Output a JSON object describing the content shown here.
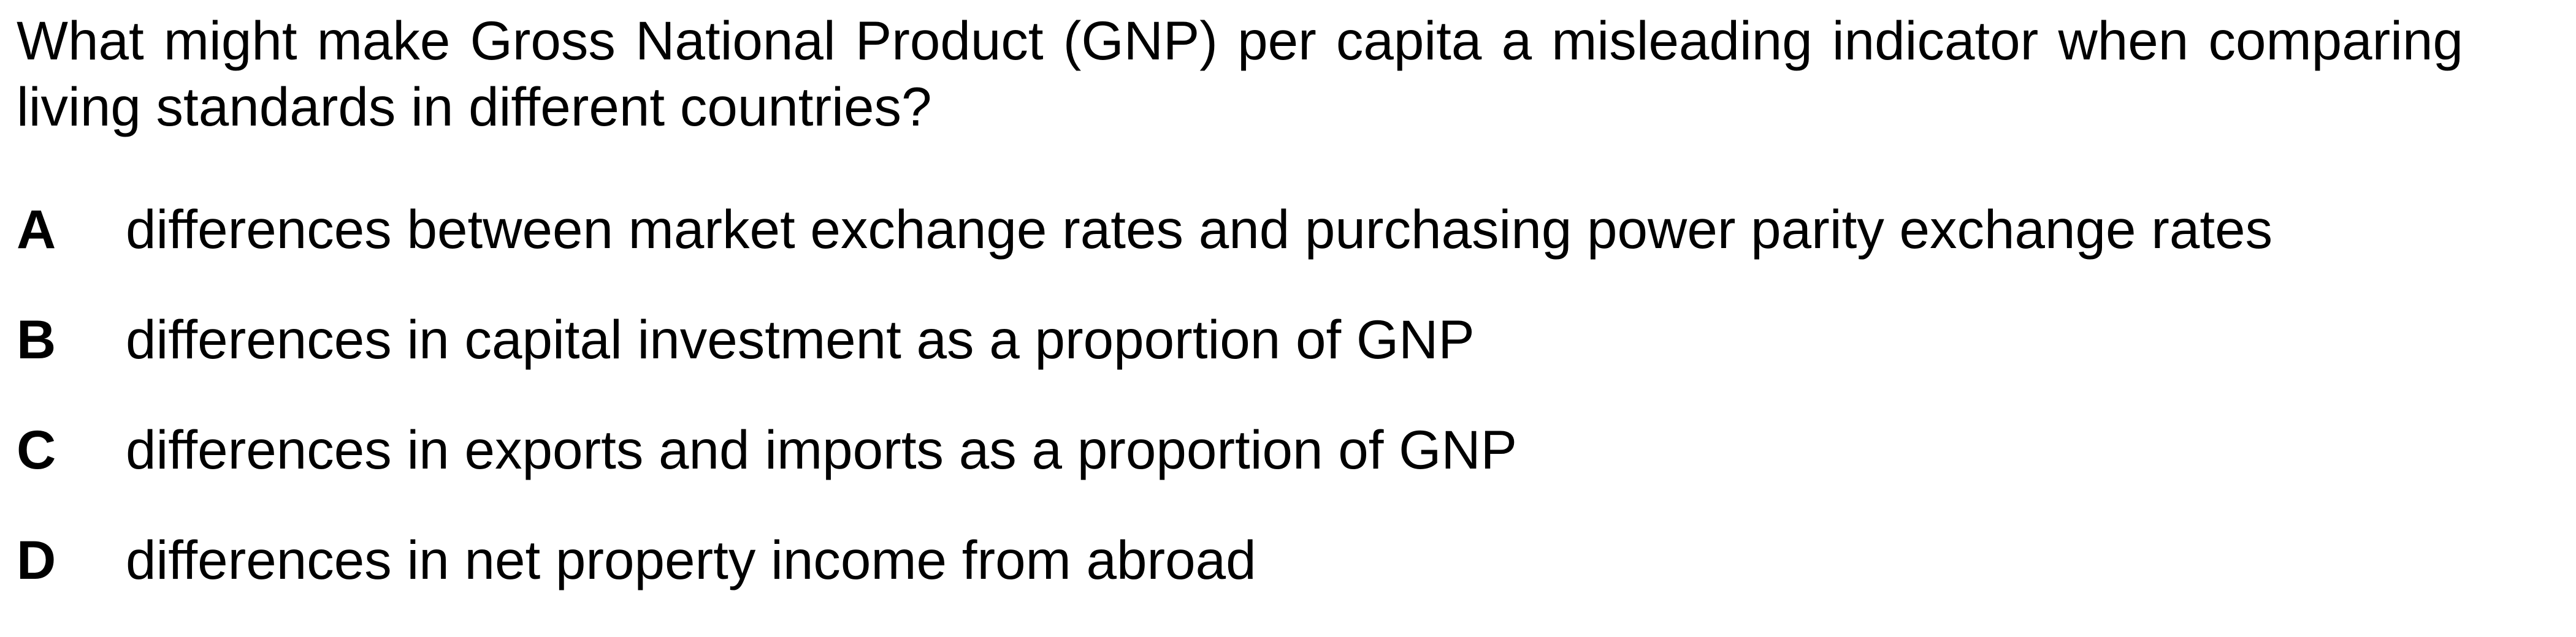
{
  "question": {
    "text": "What might make Gross National Product (GNP) per capita a misleading indicator when comparing living standards in different countries?"
  },
  "options": [
    {
      "letter": "A",
      "text": "differences between market exchange rates and purchasing power parity exchange rates"
    },
    {
      "letter": "B",
      "text": "differences in capital investment as a proportion of GNP"
    },
    {
      "letter": "C",
      "text": "differences in exports and imports as a proportion of GNP"
    },
    {
      "letter": "D",
      "text": "differences in net property income from abroad"
    }
  ]
}
